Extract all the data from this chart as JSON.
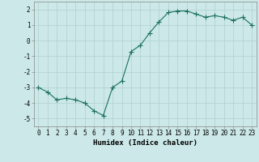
{
  "x": [
    0,
    1,
    2,
    3,
    4,
    5,
    6,
    7,
    8,
    9,
    10,
    11,
    12,
    13,
    14,
    15,
    16,
    17,
    18,
    19,
    20,
    21,
    22,
    23
  ],
  "y": [
    -3.0,
    -3.3,
    -3.8,
    -3.7,
    -3.8,
    -4.0,
    -4.5,
    -4.8,
    -3.0,
    -2.6,
    -0.7,
    -0.3,
    0.5,
    1.2,
    1.8,
    1.9,
    1.9,
    1.7,
    1.5,
    1.6,
    1.5,
    1.3,
    1.5,
    1.0
  ],
  "xlabel": "Humidex (Indice chaleur)",
  "ylim": [
    -5.5,
    2.5
  ],
  "xlim": [
    -0.5,
    23.5
  ],
  "yticks": [
    -5,
    -4,
    -3,
    -2,
    -1,
    0,
    1,
    2
  ],
  "xticks": [
    0,
    1,
    2,
    3,
    4,
    5,
    6,
    7,
    8,
    9,
    10,
    11,
    12,
    13,
    14,
    15,
    16,
    17,
    18,
    19,
    20,
    21,
    22,
    23
  ],
  "line_color": "#1a7060",
  "marker": "+",
  "marker_size": 4,
  "linewidth": 0.8,
  "bg_color": "#cce8e8",
  "grid_color": "#b0d0d0",
  "font_family": "monospace",
  "tick_fontsize": 5.5,
  "xlabel_fontsize": 6.5
}
